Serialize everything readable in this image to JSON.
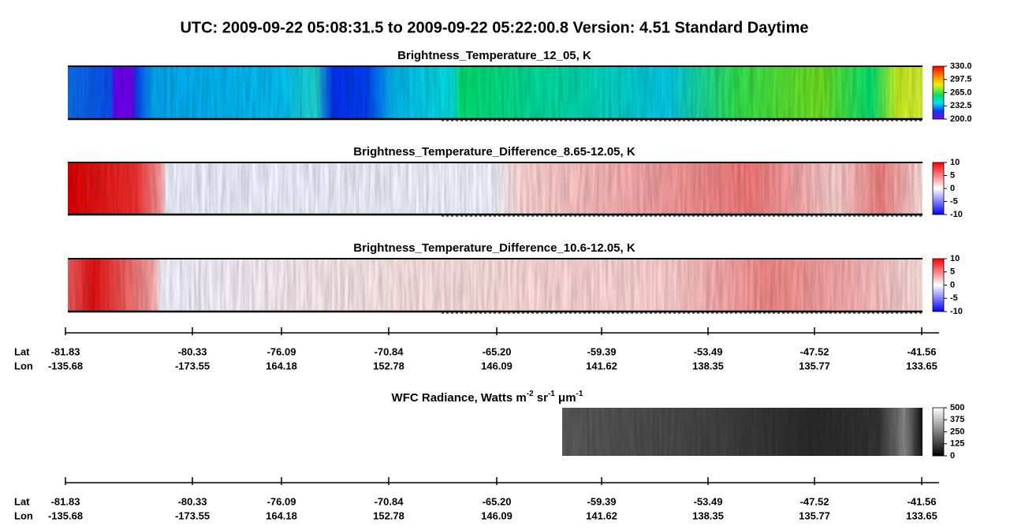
{
  "title": "UTC:  2009-09-22   05:08:31.5  to  2009-09-22   05:22:00.8    Version: 4.51  Standard Daytime",
  "panels": [
    {
      "title": "Brightness_Temperature_12_05, K",
      "colorbar": [
        "330.0",
        "297.5",
        "265.0",
        "232.5",
        "200.0"
      ]
    },
    {
      "title": "Brightness_Temperature_Difference_8.65-12.05, K",
      "colorbar": [
        "10",
        "5",
        "0",
        "-5",
        "-10"
      ]
    },
    {
      "title": "Brightness_Temperature_Difference_10.6-12.05, K",
      "colorbar": [
        "10",
        "5",
        "0",
        "-5",
        "-10"
      ]
    }
  ],
  "axes": [
    {
      "lat_label": "Lat",
      "lon_label": "Lon",
      "lat": [
        "-81.83",
        "-80.33",
        "-76.09",
        "-70.84",
        "-65.20",
        "-59.39",
        "-53.49",
        "-47.52",
        "-41.56"
      ],
      "lon": [
        "-135.68",
        "-173.55",
        "164.18",
        "152.78",
        "146.09",
        "141.62",
        "138.35",
        "135.77",
        "133.65"
      ]
    },
    {
      "lat_label": "Lat",
      "lon_label": "Lon",
      "lat": [
        "-81.83",
        "-80.33",
        "-76.09",
        "-70.84",
        "-65.20",
        "-59.39",
        "-53.49",
        "-47.52",
        "-41.56"
      ],
      "lon": [
        "-135.68",
        "-173.55",
        "164.18",
        "152.78",
        "146.09",
        "141.62",
        "138.35",
        "135.77",
        "133.65"
      ]
    }
  ],
  "wfc": {
    "title_parts": [
      "WFC Radiance, Watts m",
      "-2",
      " sr",
      "-1",
      " μm",
      "-1"
    ],
    "colorbar": [
      "500",
      "375",
      "250",
      "125",
      "0"
    ]
  }
}
